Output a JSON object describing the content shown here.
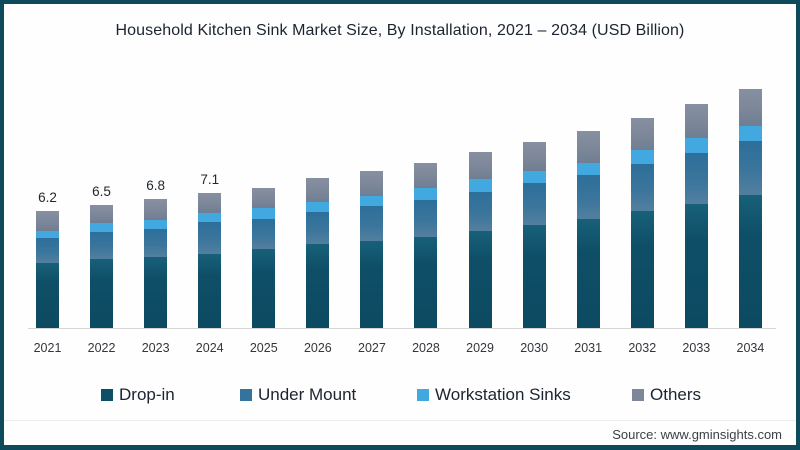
{
  "title": "Household Kitchen Sink Market Size, By Installation, 2021 – 2034 (USD Billion)",
  "source": "Source: www.gminsights.com",
  "colors": {
    "frame_border": "#0d4a5c",
    "drop_in": "#0e4f67",
    "under_mount": "#34749c",
    "workstation_sinks": "#41a9e0",
    "others": "#7d8799",
    "axis_line": "#d5d5d5",
    "background": "#fefefe"
  },
  "chart_data": {
    "type": "bar",
    "stacked": true,
    "title": "Household Kitchen Sink Market Size, By Installation, 2021 – 2034 (USD Billion)",
    "xlabel": "",
    "ylabel": "USD Billion",
    "y_axis_visible": false,
    "grid": false,
    "legend_position": "bottom",
    "categories": [
      "2021",
      "2022",
      "2023",
      "2024",
      "2025",
      "2026",
      "2027",
      "2028",
      "2029",
      "2030",
      "2031",
      "2032",
      "2033",
      "2034"
    ],
    "series": [
      {
        "name": "Drop-in",
        "color": "#0e4f67",
        "values": [
          3.45,
          3.63,
          3.77,
          3.93,
          4.17,
          4.42,
          4.6,
          4.82,
          5.14,
          5.44,
          5.75,
          6.17,
          6.53,
          7.02
        ]
      },
      {
        "name": "Under Mount",
        "color": "#34749c",
        "values": [
          1.3,
          1.45,
          1.44,
          1.65,
          1.56,
          1.68,
          1.86,
          1.93,
          2.05,
          2.23,
          2.35,
          2.46,
          2.68,
          2.84
        ]
      },
      {
        "name": "Workstation Sinks",
        "color": "#41a9e0",
        "values": [
          0.38,
          0.44,
          0.49,
          0.47,
          0.61,
          0.53,
          0.53,
          0.62,
          0.65,
          0.62,
          0.63,
          0.74,
          0.83,
          0.81
        ]
      },
      {
        "name": "Others",
        "color": "#7d8799",
        "values": [
          1.07,
          0.98,
          1.1,
          1.05,
          1.06,
          1.27,
          1.31,
          1.33,
          1.46,
          1.51,
          1.67,
          1.73,
          1.76,
          1.93
        ]
      }
    ],
    "totals": [
      6.2,
      6.5,
      6.8,
      7.1,
      7.4,
      7.9,
      8.3,
      8.7,
      9.3,
      9.8,
      10.4,
      11.1,
      11.8,
      12.6
    ],
    "visible_total_labels": [
      "6.2",
      "6.5",
      "6.8",
      "7.1",
      "",
      "",
      "",
      "",
      "",
      "",
      "",
      "",
      "",
      ""
    ]
  }
}
